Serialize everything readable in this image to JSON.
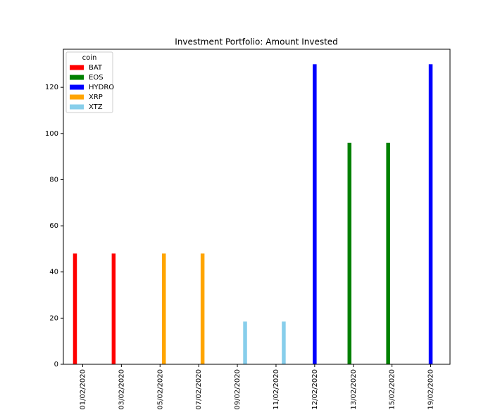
{
  "chart_data": {
    "type": "bar",
    "title": "Investment Portfolio: Amount Invested",
    "categories": [
      "01/02/2020",
      "03/02/2020",
      "05/02/2020",
      "07/02/2020",
      "09/02/2020",
      "11/02/2020",
      "12/02/2020",
      "13/02/2020",
      "15/02/2020",
      "19/02/2020"
    ],
    "legend_title": "coin",
    "legend": "upper left",
    "series": [
      {
        "name": "BAT",
        "color": "red",
        "values": [
          48,
          48,
          null,
          null,
          null,
          null,
          null,
          null,
          null,
          null
        ]
      },
      {
        "name": "EOS",
        "color": "green",
        "values": [
          null,
          null,
          null,
          null,
          null,
          null,
          null,
          96,
          96,
          null
        ]
      },
      {
        "name": "HYDRO",
        "color": "blue",
        "values": [
          null,
          null,
          null,
          null,
          null,
          null,
          130,
          null,
          null,
          130
        ]
      },
      {
        "name": "XRP",
        "color": "orange",
        "values": [
          null,
          null,
          48,
          48,
          null,
          null,
          null,
          null,
          null,
          null
        ]
      },
      {
        "name": "XTZ",
        "color": "skyblue",
        "values": [
          null,
          null,
          null,
          null,
          18.5,
          18.5,
          null,
          null,
          null,
          null
        ]
      }
    ],
    "ylim": [
      0,
      136.5
    ],
    "yticks": [
      0,
      20,
      40,
      60,
      80,
      100,
      120
    ]
  }
}
